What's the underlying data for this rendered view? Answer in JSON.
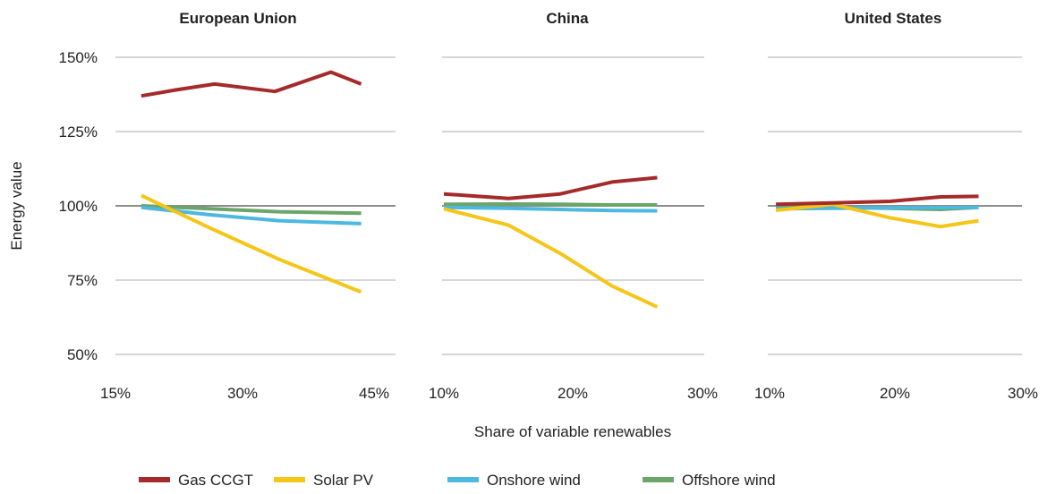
{
  "chart_data": {
    "type": "line",
    "xlabel": "Share of variable renewables",
    "ylabel": "Energy value",
    "y_ticks": [
      "150%",
      "125%",
      "100%",
      "75%",
      "50%"
    ],
    "y_tick_values": [
      150,
      125,
      100,
      75,
      50
    ],
    "ylim": [
      50,
      150
    ],
    "reference_line": 100,
    "legend_position": "bottom",
    "legend": [
      {
        "name": "Gas CCGT",
        "color": "#A52A2A"
      },
      {
        "name": "Solar PV",
        "color": "#F5C518"
      },
      {
        "name": "Onshore wind",
        "color": "#4DB8E0"
      },
      {
        "name": "Offshore wind",
        "color": "#6AA56A"
      }
    ],
    "panels": [
      {
        "title": "European Union",
        "xlim": [
          15,
          45
        ],
        "x_ticks": [
          "15%",
          "30%",
          "45%"
        ],
        "x_tick_values": [
          15,
          30,
          45
        ],
        "series": [
          {
            "name": "Gas CCGT",
            "color": "#A52A2A",
            "x": [
              18,
              22,
              26.5,
              33.5,
              40,
              43.5
            ],
            "y": [
              137,
              139,
              141,
              138.5,
              145,
              141
            ]
          },
          {
            "name": "Solar PV",
            "color": "#F5C518",
            "x": [
              18,
              26,
              34,
              43.5
            ],
            "y": [
              103.5,
              92.5,
              82,
              71
            ]
          },
          {
            "name": "Onshore wind",
            "color": "#4DB8E0",
            "x": [
              18,
              26,
              34,
              43.5
            ],
            "y": [
              99.5,
              97,
              95,
              94
            ]
          },
          {
            "name": "Offshore wind",
            "color": "#6AA56A",
            "x": [
              18,
              26,
              34,
              43.5
            ],
            "y": [
              100,
              99,
              98,
              97.5
            ]
          }
        ]
      },
      {
        "title": "China",
        "xlim": [
          10,
          30
        ],
        "x_ticks": [
          "10%",
          "20%",
          "30%"
        ],
        "x_tick_values": [
          10,
          20,
          30
        ],
        "series": [
          {
            "name": "Gas CCGT",
            "color": "#A52A2A",
            "x": [
              10,
              15,
              19,
              23,
              26.5
            ],
            "y": [
              104,
              102.5,
              104,
              108,
              109.5
            ]
          },
          {
            "name": "Solar PV",
            "color": "#F5C518",
            "x": [
              10,
              15,
              19,
              23,
              26.5
            ],
            "y": [
              99,
              93.5,
              84,
              73,
              66
            ]
          },
          {
            "name": "Onshore wind",
            "color": "#4DB8E0",
            "x": [
              10,
              15,
              19,
              23,
              26.5
            ],
            "y": [
              99.5,
              99.2,
              98.8,
              98.4,
              98.3
            ]
          },
          {
            "name": "Offshore wind",
            "color": "#6AA56A",
            "x": [
              10,
              15,
              19,
              23,
              26.5
            ],
            "y": [
              100.5,
              100.6,
              100.5,
              100.3,
              100.3
            ]
          }
        ]
      },
      {
        "title": "United States",
        "xlim": [
          10,
          30
        ],
        "x_ticks": [
          "10%",
          "20%",
          "30%"
        ],
        "x_tick_values": [
          10,
          20,
          30
        ],
        "series": [
          {
            "name": "Gas CCGT",
            "color": "#A52A2A",
            "x": [
              10.5,
              15,
              19.5,
              23.5,
              26.5
            ],
            "y": [
              100.5,
              101,
              101.5,
              103,
              103.2
            ]
          },
          {
            "name": "Solar PV",
            "color": "#F5C518",
            "x": [
              10.5,
              15,
              19.5,
              23.5,
              26.5
            ],
            "y": [
              98.5,
              100.5,
              96,
              93,
              95
            ]
          },
          {
            "name": "Onshore wind",
            "color": "#4DB8E0",
            "x": [
              10.5,
              15,
              19.5,
              23.5,
              26.5
            ],
            "y": [
              99,
              99.2,
              99.3,
              99.4,
              99.5
            ]
          },
          {
            "name": "Offshore wind",
            "color": "#6AA56A",
            "x": [
              10.5,
              15,
              19.5,
              23.5,
              26.5
            ],
            "y": [
              99.5,
              99.4,
              99.2,
              98.8,
              99.5
            ]
          }
        ]
      }
    ]
  }
}
